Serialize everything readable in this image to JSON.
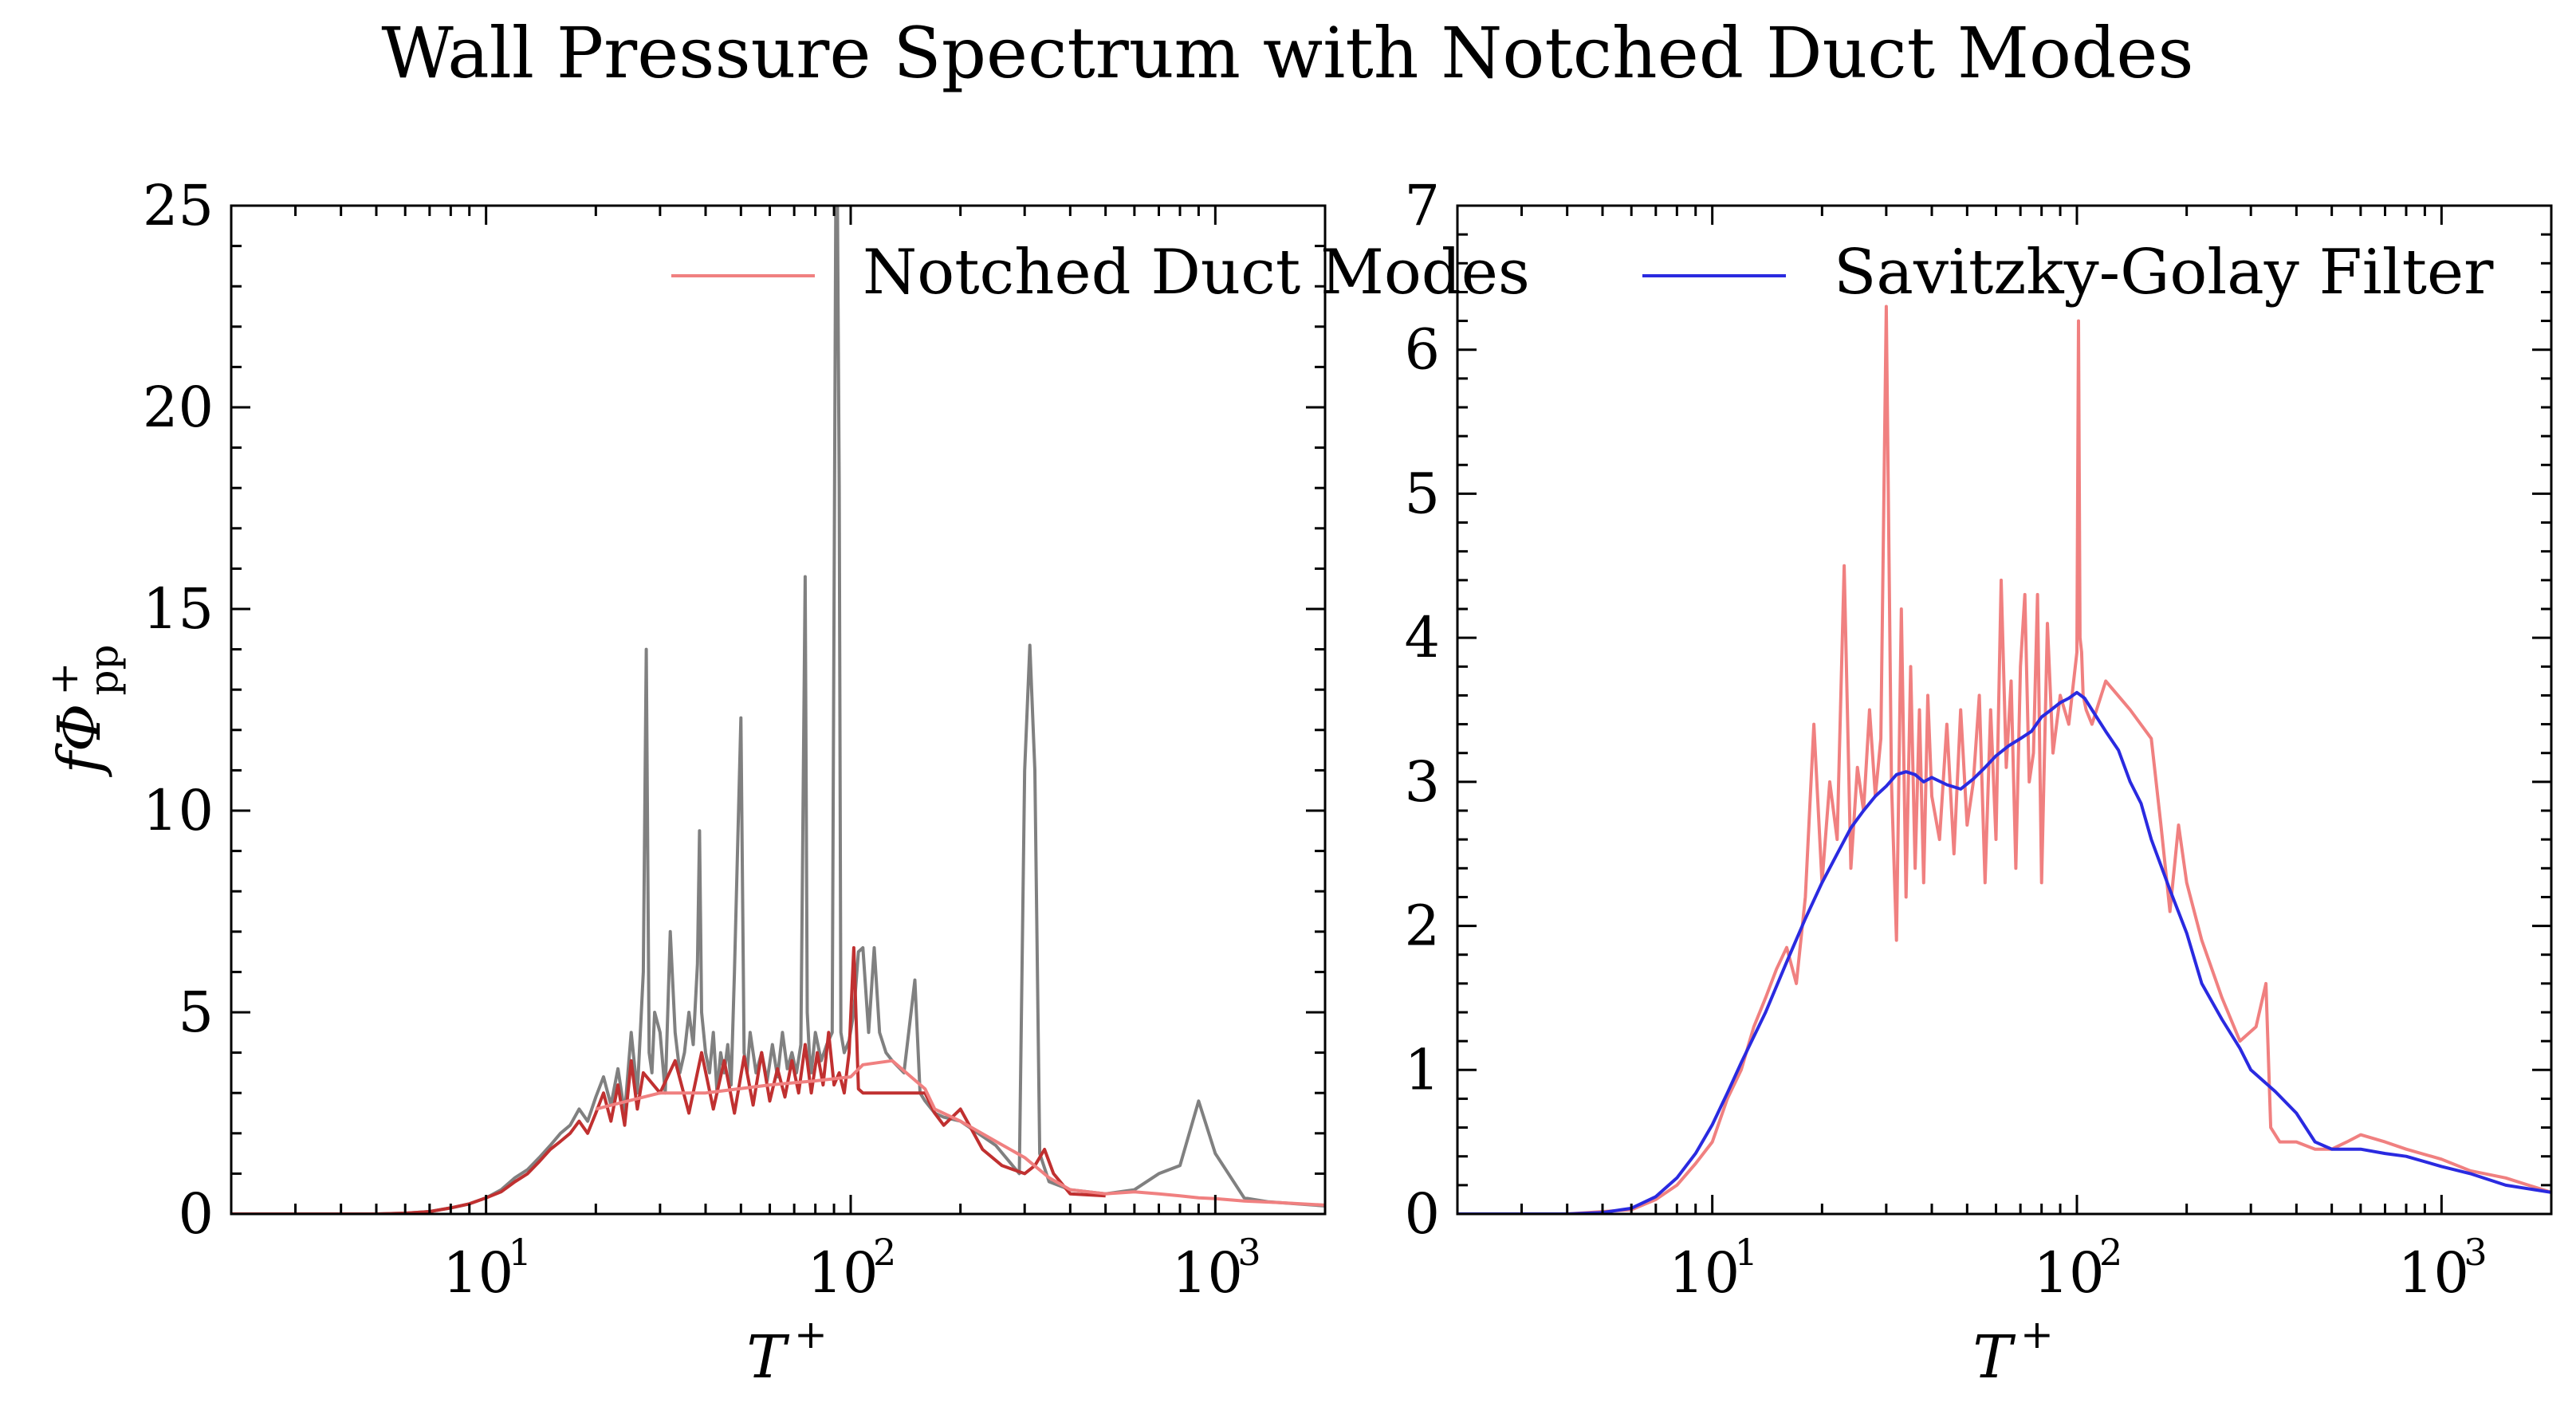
{
  "figure": {
    "title": "Wall Pressure Spectrum with Notched Duct Modes"
  },
  "chart_data": [
    {
      "type": "line",
      "xscale": "log",
      "xlim": [
        2,
        2000
      ],
      "ylim": [
        0,
        25
      ],
      "xlabel": "T+",
      "ylabel": "fΦ+pp",
      "xtick_labels": [
        {
          "value": 10,
          "base": "10",
          "exp": "1"
        },
        {
          "value": 100,
          "base": "10",
          "exp": "2"
        },
        {
          "value": 1000,
          "base": "10",
          "exp": "3"
        }
      ],
      "ytick_labels": [
        "0",
        "5",
        "10",
        "15",
        "20",
        "25"
      ],
      "yticks": [
        0,
        5,
        10,
        15,
        20,
        25
      ],
      "legend": {
        "position": "top-right",
        "entries": [
          {
            "label": "Notched Duct Modes",
            "color": "#f08080"
          }
        ]
      },
      "series": [
        {
          "color": "#808080",
          "x": [
            2,
            3,
            4,
            5,
            6,
            7,
            8,
            9,
            10,
            11,
            12,
            13,
            14,
            15,
            16,
            17,
            18,
            19,
            20,
            21,
            22,
            23,
            24,
            25,
            26,
            27,
            27.5,
            28,
            28.5,
            29,
            30,
            31,
            32,
            33,
            34,
            35,
            36,
            37,
            38,
            38.5,
            39,
            40,
            41,
            42,
            43,
            44,
            45,
            46,
            47,
            48,
            50,
            51,
            52,
            53,
            55,
            57,
            59,
            61,
            63,
            65,
            67,
            69,
            71,
            73,
            75,
            76,
            77,
            78,
            80,
            83,
            86,
            89,
            91,
            92,
            93,
            94,
            96,
            99,
            102,
            105,
            108,
            112,
            116,
            120,
            125,
            130,
            140,
            150,
            155,
            160,
            170,
            180,
            200,
            250,
            290,
            300,
            310,
            320,
            330,
            350,
            400,
            500,
            600,
            700,
            800,
            900,
            1000,
            1200,
            1400,
            2000
          ],
          "values": [
            0,
            0,
            0,
            0,
            0.02,
            0.06,
            0.15,
            0.25,
            0.4,
            0.6,
            0.9,
            1.1,
            1.4,
            1.7,
            2.0,
            2.2,
            2.6,
            2.3,
            2.9,
            3.4,
            2.7,
            3.6,
            2.5,
            4.5,
            3.0,
            6.0,
            14.0,
            4.0,
            3.5,
            5.0,
            4.5,
            3.0,
            7.0,
            4.5,
            3.5,
            4.0,
            5.0,
            4.2,
            6.2,
            9.5,
            5.0,
            4.0,
            3.5,
            4.5,
            3.0,
            4.0,
            3.5,
            4.2,
            3.2,
            6.0,
            12.3,
            4.0,
            3.5,
            4.5,
            3.5,
            4.0,
            3.3,
            4.2,
            3.4,
            4.5,
            3.6,
            4.0,
            3.5,
            4.2,
            15.8,
            5.0,
            4.0,
            3.5,
            4.5,
            3.8,
            4.2,
            4.5,
            25,
            25,
            18,
            4.5,
            4.0,
            4.3,
            5.0,
            6.5,
            6.6,
            4.5,
            6.6,
            4.5,
            4.0,
            3.8,
            3.5,
            5.8,
            3.0,
            2.8,
            2.5,
            2.4,
            2.3,
            1.7,
            1.0,
            11.0,
            14.1,
            11.0,
            1.5,
            0.8,
            0.6,
            0.5,
            0.6,
            1.0,
            1.2,
            2.8,
            1.5,
            0.4,
            0.3,
            0.2
          ]
        },
        {
          "color": "#c03030",
          "x": [
            2,
            3,
            4,
            5,
            6,
            7,
            8,
            9,
            10,
            11,
            12,
            13,
            14,
            15,
            16,
            17,
            18,
            19,
            20,
            21,
            22,
            23,
            24,
            25,
            26,
            27,
            30,
            33,
            36,
            39,
            42,
            45,
            48,
            51,
            54,
            57,
            60,
            63,
            66,
            69,
            72,
            75,
            78,
            81,
            84,
            87,
            90,
            93,
            96,
            99,
            102,
            105,
            108,
            160,
            170,
            180,
            200,
            230,
            260,
            300,
            320,
            340,
            360,
            400,
            500
          ],
          "values": [
            0,
            0,
            0,
            0,
            0.02,
            0.06,
            0.15,
            0.25,
            0.4,
            0.55,
            0.8,
            1.0,
            1.3,
            1.6,
            1.8,
            2.0,
            2.3,
            2.0,
            2.5,
            3.0,
            2.3,
            3.2,
            2.2,
            3.8,
            2.6,
            3.5,
            3.0,
            3.8,
            2.5,
            4.0,
            2.6,
            3.8,
            2.5,
            3.9,
            2.7,
            4.0,
            2.8,
            3.6,
            2.9,
            3.8,
            3.0,
            4.2,
            3.0,
            4.0,
            3.2,
            4.5,
            3.2,
            3.5,
            3.0,
            4.0,
            6.6,
            3.1,
            3.0,
            3.0,
            2.5,
            2.2,
            2.6,
            1.6,
            1.2,
            1.0,
            1.2,
            1.6,
            1.0,
            0.5,
            0.45
          ]
        },
        {
          "color": "#f08080",
          "x": [
            20,
            30,
            40,
            60,
            80,
            100,
            108,
            130,
            160,
            170,
            200,
            250,
            300,
            350,
            400,
            500,
            600,
            700,
            800,
            900,
            1000,
            1200,
            1500,
            2000
          ],
          "values": [
            2.6,
            3.0,
            3.0,
            3.2,
            3.3,
            3.4,
            3.7,
            3.8,
            3.1,
            2.6,
            2.3,
            1.8,
            1.4,
            0.9,
            0.6,
            0.5,
            0.55,
            0.5,
            0.45,
            0.4,
            0.38,
            0.32,
            0.28,
            0.22
          ]
        }
      ]
    },
    {
      "type": "line",
      "xscale": "log",
      "xlim": [
        2,
        2000
      ],
      "ylim": [
        0,
        7
      ],
      "xlabel": "T+",
      "xtick_labels": [
        {
          "value": 10,
          "base": "10",
          "exp": "1"
        },
        {
          "value": 100,
          "base": "10",
          "exp": "2"
        },
        {
          "value": 1000,
          "base": "10",
          "exp": "3"
        }
      ],
      "ytick_labels": [
        "0",
        "1",
        "2",
        "3",
        "4",
        "5",
        "6",
        "7"
      ],
      "yticks": [
        0,
        1,
        2,
        3,
        4,
        5,
        6,
        7
      ],
      "legend": {
        "position": "top-right",
        "entries": [
          {
            "label": "Savitzky-Golay Filter",
            "color": "#2a2ae0"
          }
        ]
      },
      "series": [
        {
          "color": "#f08080",
          "x": [
            2,
            4,
            6,
            7,
            8,
            9,
            10,
            11,
            12,
            13,
            14,
            15,
            16,
            17,
            18,
            19,
            20,
            21,
            22,
            23,
            24,
            25,
            26,
            27,
            28,
            29,
            30,
            31,
            32,
            33,
            34,
            35,
            36,
            37,
            38,
            39,
            40,
            42,
            44,
            46,
            48,
            50,
            52,
            54,
            56,
            58,
            60,
            62,
            64,
            66,
            68,
            70,
            72,
            74,
            76,
            78,
            80,
            83,
            86,
            90,
            95,
            100,
            101,
            102,
            103,
            104,
            106,
            110,
            120,
            140,
            160,
            170,
            180,
            190,
            200,
            220,
            250,
            280,
            310,
            330,
            340,
            360,
            400,
            450,
            500,
            550,
            600,
            700,
            800,
            1000,
            1200,
            1500,
            2000
          ],
          "values": [
            0,
            0,
            0.03,
            0.1,
            0.2,
            0.35,
            0.5,
            0.8,
            1.0,
            1.3,
            1.5,
            1.7,
            1.85,
            1.6,
            2.2,
            3.4,
            2.3,
            3.0,
            2.6,
            4.5,
            2.4,
            3.1,
            2.8,
            3.5,
            2.9,
            3.3,
            6.3,
            3.0,
            1.9,
            4.2,
            2.2,
            3.8,
            2.4,
            3.5,
            2.3,
            3.6,
            2.9,
            2.6,
            3.4,
            2.5,
            3.5,
            2.7,
            3.0,
            3.6,
            2.3,
            3.5,
            2.6,
            4.4,
            3.1,
            3.7,
            2.4,
            3.8,
            4.3,
            3.0,
            3.2,
            4.3,
            2.3,
            4.1,
            3.2,
            3.6,
            3.4,
            3.9,
            6.2,
            4.0,
            3.9,
            3.6,
            3.5,
            3.4,
            3.7,
            3.5,
            3.3,
            2.7,
            2.1,
            2.7,
            2.3,
            1.9,
            1.5,
            1.2,
            1.3,
            1.6,
            0.6,
            0.5,
            0.5,
            0.45,
            0.45,
            0.5,
            0.55,
            0.5,
            0.45,
            0.38,
            0.3,
            0.25,
            0.15
          ]
        },
        {
          "color": "#2a2ae0",
          "x": [
            2,
            4,
            5,
            6,
            7,
            8,
            9,
            10,
            11,
            12,
            14,
            16,
            18,
            20,
            22,
            24,
            26,
            28,
            30,
            32,
            34,
            36,
            38,
            40,
            44,
            48,
            52,
            56,
            60,
            65,
            70,
            75,
            80,
            85,
            90,
            95,
            100,
            105,
            110,
            120,
            130,
            140,
            150,
            160,
            180,
            200,
            220,
            250,
            280,
            300,
            350,
            400,
            450,
            500,
            600,
            700,
            800,
            1000,
            1200,
            1500,
            2000
          ],
          "values": [
            0,
            0,
            0.01,
            0.04,
            0.12,
            0.25,
            0.42,
            0.62,
            0.84,
            1.05,
            1.4,
            1.75,
            2.05,
            2.3,
            2.5,
            2.68,
            2.8,
            2.9,
            2.97,
            3.05,
            3.07,
            3.05,
            3.0,
            3.03,
            2.98,
            2.95,
            3.02,
            3.1,
            3.18,
            3.25,
            3.3,
            3.35,
            3.45,
            3.5,
            3.55,
            3.58,
            3.62,
            3.58,
            3.5,
            3.35,
            3.22,
            3.0,
            2.85,
            2.6,
            2.25,
            1.95,
            1.6,
            1.35,
            1.15,
            1.0,
            0.85,
            0.7,
            0.5,
            0.45,
            0.45,
            0.42,
            0.4,
            0.33,
            0.28,
            0.2,
            0.15
          ]
        }
      ]
    }
  ]
}
